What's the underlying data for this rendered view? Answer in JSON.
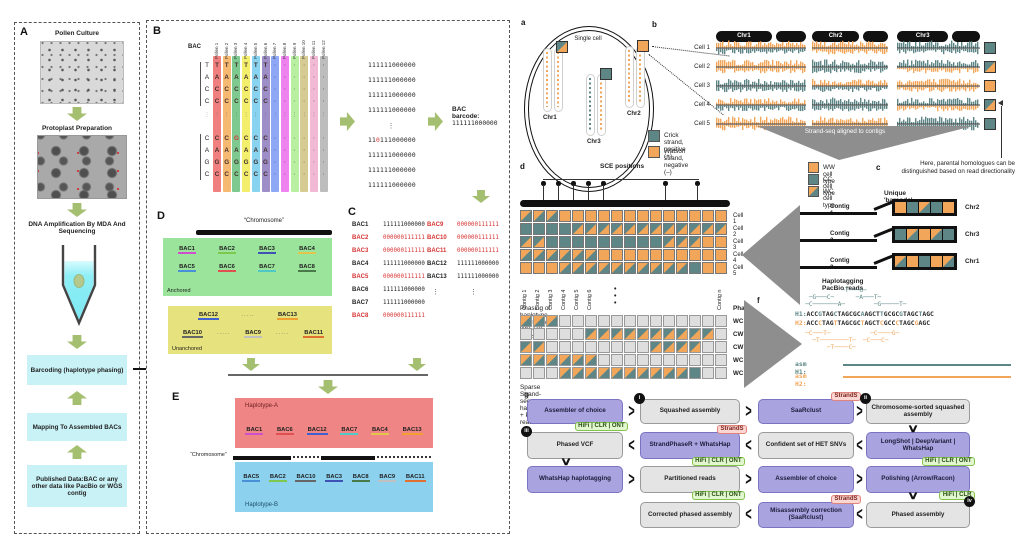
{
  "colors": {
    "watson": "#f2a65a",
    "crick": "#5e8687",
    "grid_gray": "#dedede",
    "green_arrow": "#a5bf70",
    "red_text": "#d63333",
    "funnel": "#8e8e8e",
    "hapA_bg": "#ef8585",
    "hapB_bg": "#8cd2ef",
    "anchored_bg": "#9be49b",
    "unanchored_bg": "#e6e27e",
    "cyan_box": "#c9f2f6",
    "purple_box": "#a9a3e0",
    "gray_box": "#e4e4e4"
  },
  "left_figure": {
    "panel_a": {
      "label": "A",
      "steps": [
        "Pollen Culture",
        "Protoplast Preparation",
        "DNA Amplification By MDA And Sequencing"
      ],
      "boxes": [
        "Barcoding (haplotype phasing)",
        "Mapping To Assembled BACs",
        "Published Data:BAC or any other data like PacBio or WGS contig"
      ]
    },
    "panel_b": {
      "label": "B",
      "bac_label": "BAC",
      "columns": [
        {
          "name": "Pollen 1",
          "color": "#f08080"
        },
        {
          "name": "Pollen 2",
          "color": "#f5b971"
        },
        {
          "name": "Pollen 3",
          "color": "#7dc98f"
        },
        {
          "name": "Pollen 4",
          "color": "#f3ef6d"
        },
        {
          "name": "Pollen 5",
          "color": "#87d3f0"
        },
        {
          "name": "Pollen 6",
          "color": "#9d8ec7"
        },
        {
          "name": "Pollen 7",
          "color": "#8fa8f5"
        },
        {
          "name": "Pollen 8",
          "color": "#ee82ee"
        },
        {
          "name": "Pollen 9",
          "color": "#b8efa0"
        },
        {
          "name": "Pollen 10",
          "color": "#d6cc93"
        },
        {
          "name": "Pollen 11",
          "color": "#f2b9d4"
        },
        {
          "name": "Pollen 12",
          "color": "#bdbdbd"
        }
      ],
      "ref_block1": [
        "T",
        "A",
        "C",
        "C"
      ],
      "ref_block2": [
        "C",
        "A",
        "G",
        "C"
      ],
      "variant": {
        "col": 2,
        "row": 0,
        "letter": "G"
      },
      "binary_rows": [
        "111111000000",
        "111111000000",
        "111111000000",
        "111111000000",
        "⋮",
        "110111000000",
        "111111000000",
        "111111000000",
        "111111000000"
      ],
      "binary_variant": {
        "row": 5,
        "char": 2
      },
      "barcode_label": "BAC barcode:",
      "barcode_value": "111111000000"
    },
    "panel_c": {
      "label": "C",
      "rows_left": [
        {
          "name": "BAC1",
          "code": "111111000000",
          "red": false
        },
        {
          "name": "BAC2",
          "code": "000000111111",
          "red": true
        },
        {
          "name": "BAC3",
          "code": "000000111111",
          "red": true
        },
        {
          "name": "BAC4",
          "code": "111111000000",
          "red": false
        },
        {
          "name": "BAC5",
          "code": "000000111111",
          "red": true
        },
        {
          "name": "BAC6",
          "code": "111111000000",
          "red": false
        },
        {
          "name": "BAC7",
          "code": "111111000000",
          "red": false
        },
        {
          "name": "BAC8",
          "code": "000000111111",
          "red": true
        }
      ],
      "rows_right": [
        {
          "name": "BAC9",
          "code": "000000111111",
          "red": true
        },
        {
          "name": "BAC10",
          "code": "000000111111",
          "red": true
        },
        {
          "name": "BAC11",
          "code": "000000111111",
          "red": true
        },
        {
          "name": "BAC12",
          "code": "111111000000",
          "red": false
        },
        {
          "name": "BAC13",
          "code": "111111000000",
          "red": false
        }
      ],
      "dots": "⋮"
    },
    "panel_d": {
      "label": "D",
      "chromosome_label": "“Chromosome”",
      "anchored_label": "Anchored",
      "unanchored_label": "Unanchored",
      "anchored_rows": [
        [
          "BAC1",
          "BAC2",
          "BAC3",
          "BAC4"
        ],
        [
          "BAC5",
          "BAC6",
          "BAC7",
          "BAC8"
        ]
      ],
      "unanchored_rows": [
        [
          "BAC12",
          "BAC13"
        ],
        [
          "BAC10",
          "BAC9",
          "BAC11"
        ]
      ]
    },
    "panel_e": {
      "label": "E",
      "hapA_label": "Haplotype-A",
      "hapB_label": "Haplotype-B",
      "chromosome_label": "“Chromosome”",
      "hapA": [
        "BAC1",
        "BAC6",
        "BAC12",
        "BAC7",
        "BAC4",
        "BAC13"
      ],
      "hapB": [
        "BAC5",
        "BAC2",
        "BAC10",
        "BAC3",
        "BAC8",
        "BAC9",
        "BAC11"
      ]
    },
    "bac_colors": {
      "BAC1": "#cf4fcf",
      "BAC2": "#7ec850",
      "BAC3": "#3f51b5",
      "BAC4": "#e4c44a",
      "BAC5": "#4a90d9",
      "BAC6": "#e05050",
      "BAC7": "#50c8c8",
      "BAC8": "#4a7a4a",
      "BAC9": "#c0c0c0",
      "BAC10": "#666666",
      "BAC11": "#e07030",
      "BAC12": "#4060d0",
      "BAC13": "#f0a030"
    }
  },
  "right_figure": {
    "panel_a": {
      "label": "a",
      "cell_label": "Single cell",
      "chromosomes": [
        {
          "name": "Chr1",
          "square": "Y"
        },
        {
          "name": "Chr3",
          "square": "C"
        },
        {
          "name": "Chr2",
          "square": "W"
        }
      ]
    },
    "panel_b": {
      "label": "b",
      "chromosomes": [
        {
          "name": "Chr1",
          "types": [
            "X",
            "W",
            "C",
            "X",
            "W"
          ]
        },
        {
          "name": "Chr2",
          "types": [
            "W",
            "C",
            "X",
            "C",
            "W"
          ]
        },
        {
          "name": "Chr3",
          "types": [
            "C",
            "Y",
            "W",
            "Y",
            "C"
          ]
        }
      ],
      "cells": [
        "Cell 1",
        "Cell 2",
        "Cell 3",
        "Cell 4",
        "Cell 5"
      ],
      "squares": [
        "C",
        "Y",
        "W",
        "Y",
        "C"
      ],
      "legend": [
        {
          "type": "C",
          "label": "Crick strand, positive (+)"
        },
        {
          "type": "W",
          "label": "Watson strand, negative (–)"
        }
      ],
      "funnel_label": "Strand-seq aligned to contigs",
      "note": "Here, parental homologues can be distinguished based on read directionality"
    },
    "panel_c": {
      "label": "c",
      "legend": [
        {
          "type": "W",
          "label": "WW cell type"
        },
        {
          "type": "C",
          "label": "CC cell type"
        },
        {
          "type": "X",
          "label": "WC cell type"
        }
      ],
      "barcode_title": "Unique 'barcode'",
      "contigs": [
        {
          "name": "Contig 1",
          "pattern": "WCXCW",
          "chr": "Chr2"
        },
        {
          "name": "Contig 2",
          "pattern": "CXWXC",
          "chr": "Chr3"
        },
        {
          "name": "Contig 3",
          "pattern": "XWCWX",
          "chr": "Chr1"
        }
      ]
    },
    "panel_d": {
      "label": "d",
      "sce_label": "SCE positions",
      "grid": [
        "XXXWWWWWWWWWWWWW",
        "CCCCYYYYYYYYYYYY",
        "YYCCCCCCCCCYYYWW",
        "XXXXXXWWWWWWWWWW",
        "WWWXXXXXXXXXXCWW"
      ],
      "contig_labels": [
        "Contig 1",
        "Contig 2",
        "Contig 3",
        "Contig 4",
        "Contig 5",
        "Contig 6"
      ],
      "dots": "•  •  •",
      "last_contig": "Contig n"
    },
    "panel_e": {
      "label": "e",
      "title": "Phasing of haplotype-informative WC cell types",
      "phase_header": "Phase",
      "rows": [
        {
          "phase": "WC",
          "pattern": "XXXGGGGGGGGGGGGG"
        },
        {
          "phase": "CW",
          "pattern": "GGGGGYYYYYYYYYYG"
        },
        {
          "phase": "CW",
          "pattern": "YYGGGGGGGGYYYYGG"
        },
        {
          "phase": "WC",
          "pattern": "XXXXXXGGGGGGGGGG"
        },
        {
          "phase": "WC",
          "pattern": "GGGXXXXXXXXXXCGG"
        }
      ],
      "footer": "Sparse Strand-seq haplotypes + PacBio reads"
    },
    "panel_f": {
      "label": "f",
      "title": "Haplotagging PacBio reads",
      "h1_label": "H1:",
      "h2_label": "H2:",
      "h1_seq": "ACCGTAGCTAGCGCAAGCTTGCGCGTAGCTAGC",
      "h2_seq": "ACCCTAGTTAGCGCTAGCTCGCCCTAGCGAGC",
      "h1_highlights": [
        3,
        7,
        14,
        19,
        24,
        29
      ],
      "h2_highlights": [
        3,
        7,
        14,
        19,
        23,
        28
      ],
      "reads_top": [
        "            ─T───G─",
        "   ─G───C─      ─A───T─",
        "  ─C───────A─        ─G─────T─"
      ],
      "reads_bottom": [
        "  ─C───T─           ─C────G─",
        "    ─T────────T─  ─C───C─",
        "        ─T────C─"
      ],
      "asm_h1_label": "asm H1:",
      "asm_h2_label": "asm H2:"
    },
    "panel_g": {
      "label": "g",
      "rows": [
        {
          "cells": [
            {
              "text": "Assembler of choice",
              "style": "purple",
              "tag_bottom": "HiFi | CLR | ONT"
            },
            {
              "text": "Squashed assembly",
              "style": "gray",
              "marker": "i",
              "marker_side": "left"
            },
            {
              "text": "SaaRclust",
              "style": "purple",
              "tag_top": "StrandS"
            },
            {
              "text": "Chromosome-sorted squashed assembly",
              "style": "gray",
              "marker": "ii",
              "marker_side": "left"
            }
          ],
          "arrows": [
            ">",
            ">",
            ">"
          ]
        },
        {
          "cells": [
            {
              "text": "Phased VCF",
              "style": "gray",
              "marker": "iii",
              "marker_side": "left"
            },
            {
              "text": "StrandPhaseR + WhatsHap",
              "style": "purple",
              "tag_top": "StrandS",
              "tag_bottom": "HiFi | CLR | ONT"
            },
            {
              "text": "Confident set of HET SNVs",
              "style": "gray"
            },
            {
              "text": "LongShot | DeepVariant | WhatsHap",
              "style": "purple",
              "tag_bottom": "HiFi | CLR | ONT"
            }
          ],
          "arrows": [
            "<",
            "<",
            "<"
          ]
        },
        {
          "cells": [
            {
              "text": "WhatsHap haplotagging",
              "style": "purple"
            },
            {
              "text": "Partitioned reads",
              "style": "gray",
              "tag_bottom": "HiFi | CLR | ONT"
            },
            {
              "text": "Assembler of choice",
              "style": "purple"
            },
            {
              "text": "Polishing (Arrow/Racon)",
              "style": "purple",
              "tag_bottom": "HiFi | CLR"
            }
          ],
          "arrows": [
            ">",
            ">",
            ">"
          ]
        },
        {
          "cells": [
            null,
            {
              "text": "Corrected phased assembly",
              "style": "gray"
            },
            {
              "text": "Misassembly correction (SaaRclust)",
              "style": "purple",
              "tag_top": "StrandS"
            },
            {
              "text": "Phased assembly",
              "style": "gray",
              "marker": "iv",
              "marker_side": "right"
            }
          ],
          "arrows": [
            "",
            "<",
            "<"
          ]
        }
      ]
    }
  }
}
